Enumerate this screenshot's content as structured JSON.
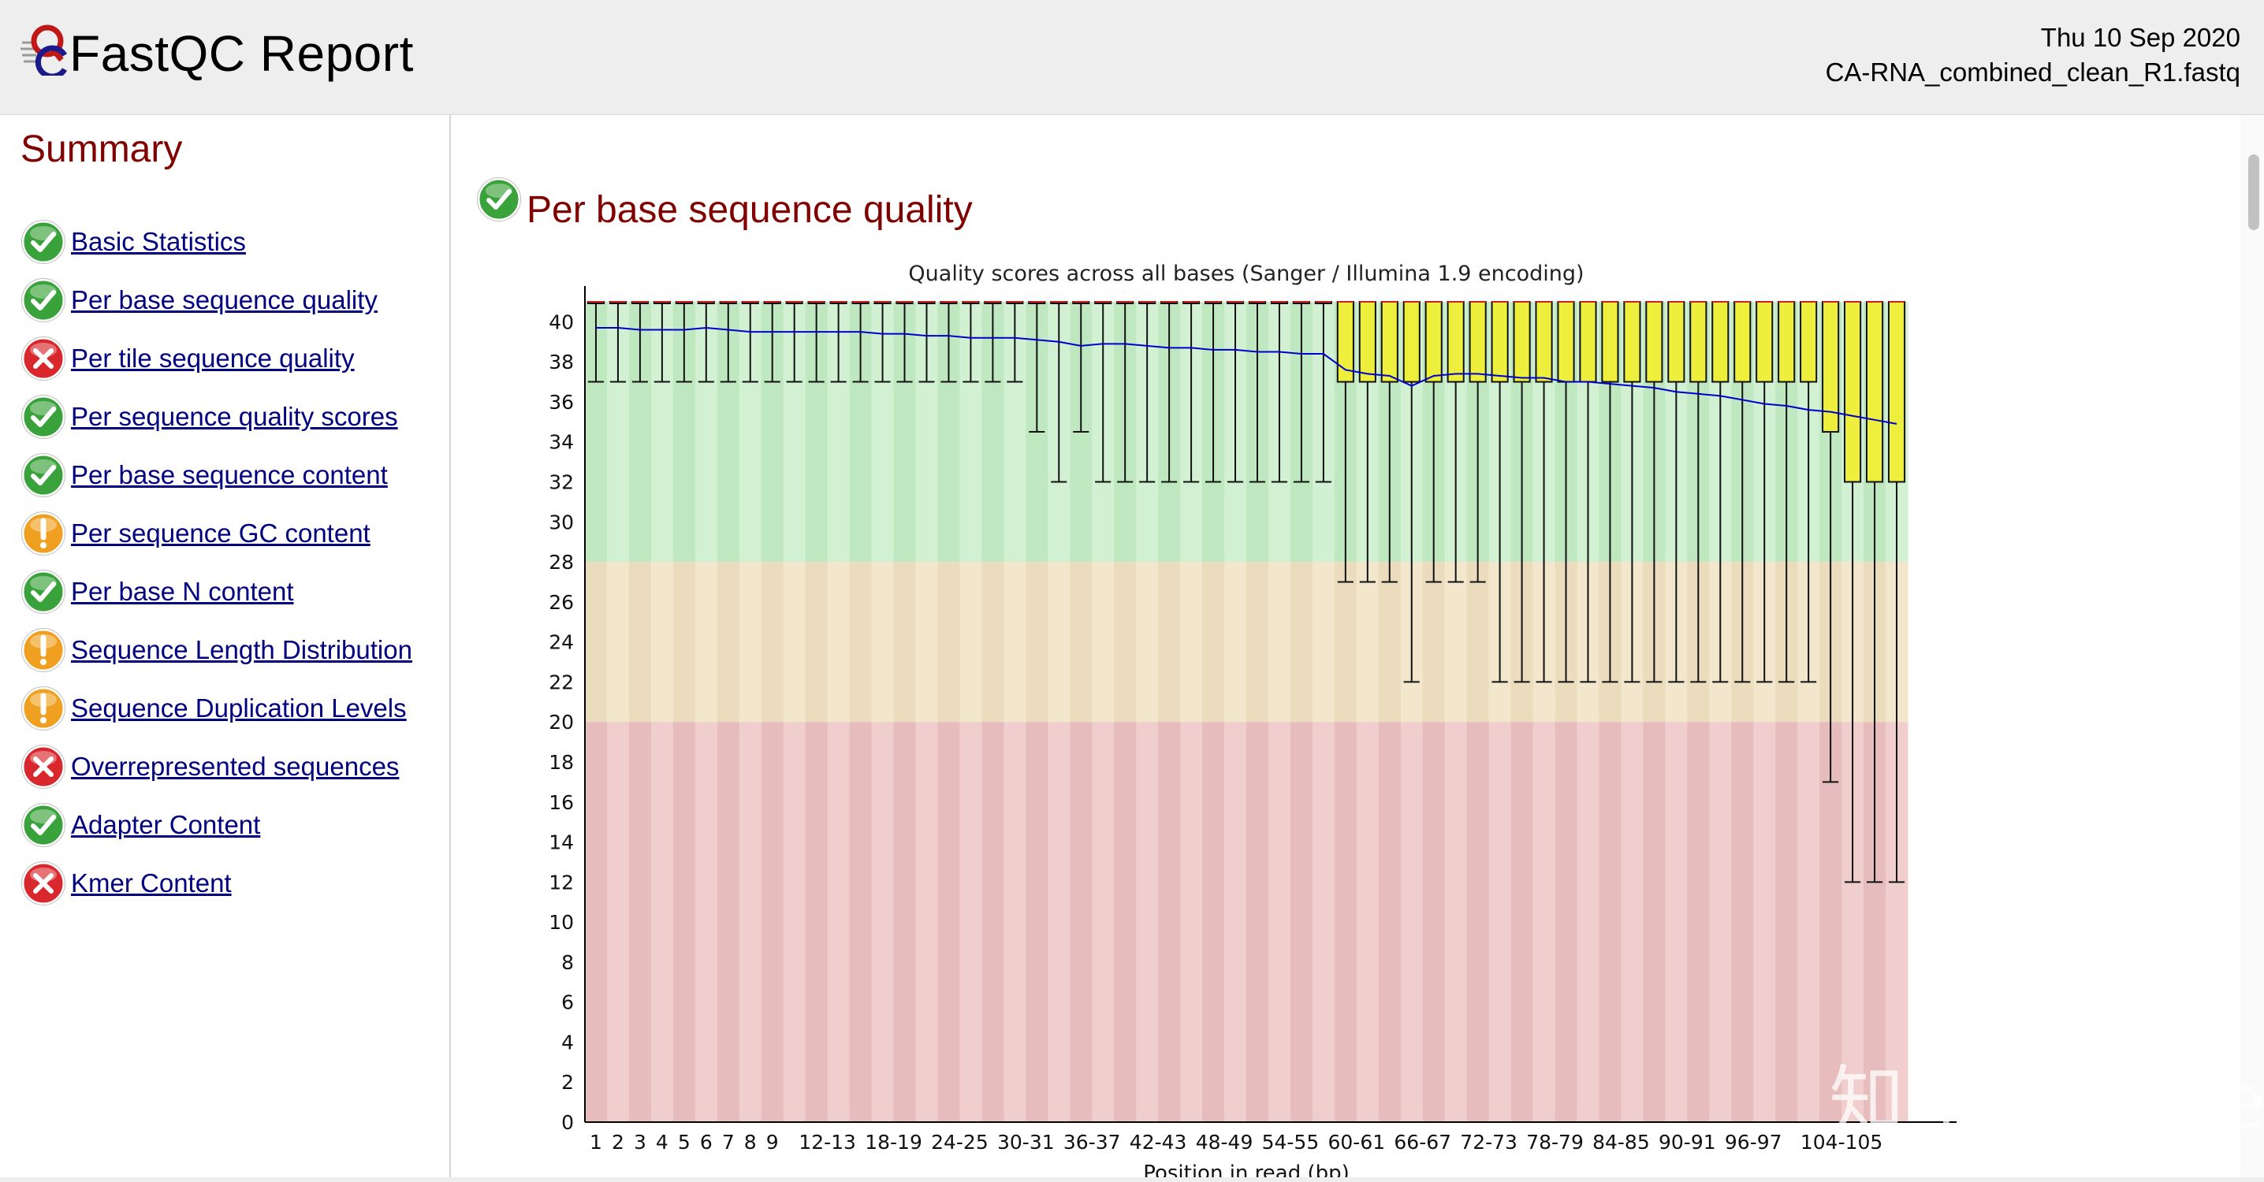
{
  "header": {
    "title": "FastQC Report",
    "date": "Thu 10 Sep 2020",
    "filename": "CA-RNA_combined_clean_R1.fastq"
  },
  "sidebar": {
    "title": "Summary",
    "modules": [
      {
        "label": "Basic Statistics",
        "status": "pass"
      },
      {
        "label": "Per base sequence quality",
        "status": "pass"
      },
      {
        "label": "Per tile sequence quality",
        "status": "fail"
      },
      {
        "label": "Per sequence quality scores",
        "status": "pass"
      },
      {
        "label": "Per base sequence content",
        "status": "pass"
      },
      {
        "label": "Per sequence GC content",
        "status": "warn"
      },
      {
        "label": "Per base N content",
        "status": "pass"
      },
      {
        "label": "Sequence Length Distribution",
        "status": "warn"
      },
      {
        "label": "Sequence Duplication Levels",
        "status": "warn"
      },
      {
        "label": "Overrepresented sequences",
        "status": "fail"
      },
      {
        "label": "Adapter Content",
        "status": "pass"
      },
      {
        "label": "Kmer Content",
        "status": "fail"
      }
    ]
  },
  "section": {
    "title": "Per base sequence quality",
    "status": "pass"
  },
  "colors": {
    "pass": "#3aa23a",
    "fail": "#d8282d",
    "warn": "#f0a020",
    "title": "#800000",
    "link": "#000080",
    "box_fill": "#eeee3c",
    "mean_line": "#0000cc"
  },
  "watermark": "知乎 @Jade",
  "chart_data": {
    "type": "boxplot",
    "title": "Quality scores across all bases (Sanger / Illumina 1.9 encoding)",
    "xlabel": "Position in read (bp)",
    "ylabel": "",
    "ylim": [
      0,
      41
    ],
    "yticks": [
      0,
      2,
      4,
      6,
      8,
      10,
      12,
      14,
      16,
      18,
      20,
      22,
      24,
      26,
      28,
      30,
      32,
      34,
      36,
      38,
      40
    ],
    "quality_bands": [
      {
        "name": "good",
        "from": 28,
        "to": 41
      },
      {
        "name": "reasonable",
        "from": 20,
        "to": 28
      },
      {
        "name": "poor",
        "from": 0,
        "to": 20
      }
    ],
    "categories": [
      "1",
      "2",
      "3",
      "4",
      "5",
      "6",
      "7",
      "8",
      "9",
      "10-11",
      "12-13",
      "14-15",
      "16-17",
      "18-19",
      "20-21",
      "22-23",
      "24-25",
      "26-27",
      "28-29",
      "30-31",
      "32-33",
      "34-35",
      "36-37",
      "38-39",
      "40-41",
      "42-43",
      "44-45",
      "46-47",
      "48-49",
      "50-51",
      "52-53",
      "54-55",
      "56-57",
      "58-59",
      "60-61",
      "62-63",
      "64-65",
      "66-67",
      "68-69",
      "70-71",
      "72-73",
      "74-75",
      "76-77",
      "78-79",
      "80-81",
      "82-83",
      "84-85",
      "86-87",
      "88-89",
      "90-91",
      "92-93",
      "94-95",
      "96-97",
      "98-99",
      "100-101",
      "102-103",
      "104-105",
      "106-107",
      "108-109",
      "110-111"
    ],
    "x_tick_labels": [
      "1",
      "2",
      "3",
      "4",
      "5",
      "6",
      "7",
      "8",
      "9",
      "12-13",
      "18-19",
      "24-25",
      "30-31",
      "36-37",
      "42-43",
      "48-49",
      "54-55",
      "60-61",
      "66-67",
      "72-73",
      "78-79",
      "84-85",
      "90-91",
      "96-97",
      "104-105"
    ],
    "series": [
      {
        "name": "median",
        "values": [
          41,
          41,
          41,
          41,
          41,
          41,
          41,
          41,
          41,
          41,
          41,
          41,
          41,
          41,
          41,
          41,
          41,
          41,
          41,
          41,
          41,
          41,
          41,
          41,
          41,
          41,
          41,
          41,
          41,
          41,
          41,
          41,
          41,
          41,
          41,
          41,
          41,
          41,
          41,
          41,
          41,
          41,
          41,
          41,
          41,
          41,
          41,
          41,
          41,
          41,
          41,
          41,
          41,
          41,
          41,
          41,
          41,
          41,
          41,
          41
        ]
      },
      {
        "name": "upper_quartile",
        "values": [
          41,
          41,
          41,
          41,
          41,
          41,
          41,
          41,
          41,
          41,
          41,
          41,
          41,
          41,
          41,
          41,
          41,
          41,
          41,
          41,
          41,
          41,
          41,
          41,
          41,
          41,
          41,
          41,
          41,
          41,
          41,
          41,
          41,
          41,
          41,
          41,
          41,
          41,
          41,
          41,
          41,
          41,
          41,
          41,
          41,
          41,
          41,
          41,
          41,
          41,
          41,
          41,
          41,
          41,
          41,
          41,
          41,
          41,
          41,
          41
        ]
      },
      {
        "name": "lower_quartile",
        "values": [
          41,
          41,
          41,
          41,
          41,
          41,
          41,
          41,
          41,
          41,
          41,
          41,
          41,
          41,
          41,
          41,
          41,
          41,
          41,
          41,
          41,
          41,
          41,
          41,
          41,
          41,
          41,
          41,
          41,
          41,
          41,
          41,
          41,
          41,
          37,
          37,
          37,
          37,
          37,
          37,
          37,
          37,
          37,
          37,
          37,
          37,
          37,
          37,
          37,
          37,
          37,
          37,
          37,
          37,
          37,
          37,
          34.5,
          32,
          32,
          32
        ]
      },
      {
        "name": "upper_whisker",
        "values": [
          41,
          41,
          41,
          41,
          41,
          41,
          41,
          41,
          41,
          41,
          41,
          41,
          41,
          41,
          41,
          41,
          41,
          41,
          41,
          41,
          41,
          41,
          41,
          41,
          41,
          41,
          41,
          41,
          41,
          41,
          41,
          41,
          41,
          41,
          41,
          41,
          41,
          41,
          41,
          41,
          41,
          41,
          41,
          41,
          41,
          41,
          41,
          41,
          41,
          41,
          41,
          41,
          41,
          41,
          41,
          41,
          41,
          41,
          41,
          41
        ]
      },
      {
        "name": "lower_whisker",
        "values": [
          37,
          37,
          37,
          37,
          37,
          37,
          37,
          37,
          37,
          37,
          37,
          37,
          37,
          37,
          37,
          37,
          37,
          37,
          37,
          37,
          34.5,
          32,
          34.5,
          32,
          32,
          32,
          32,
          32,
          32,
          32,
          32,
          32,
          32,
          32,
          27,
          27,
          27,
          22,
          27,
          27,
          27,
          22,
          22,
          22,
          22,
          22,
          22,
          22,
          22,
          22,
          22,
          22,
          22,
          22,
          22,
          22,
          17,
          12,
          12,
          12
        ]
      },
      {
        "name": "mean",
        "values": [
          39.7,
          39.7,
          39.6,
          39.6,
          39.6,
          39.7,
          39.6,
          39.5,
          39.5,
          39.5,
          39.5,
          39.5,
          39.5,
          39.4,
          39.4,
          39.3,
          39.3,
          39.2,
          39.2,
          39.2,
          39.1,
          39.0,
          38.8,
          38.9,
          38.9,
          38.8,
          38.7,
          38.7,
          38.6,
          38.6,
          38.5,
          38.5,
          38.4,
          38.4,
          37.6,
          37.4,
          37.3,
          36.8,
          37.3,
          37.4,
          37.4,
          37.3,
          37.2,
          37.2,
          37.0,
          37.0,
          36.9,
          36.8,
          36.7,
          36.5,
          36.4,
          36.3,
          36.1,
          35.9,
          35.8,
          35.6,
          35.5,
          35.3,
          35.1,
          34.9
        ]
      }
    ]
  }
}
